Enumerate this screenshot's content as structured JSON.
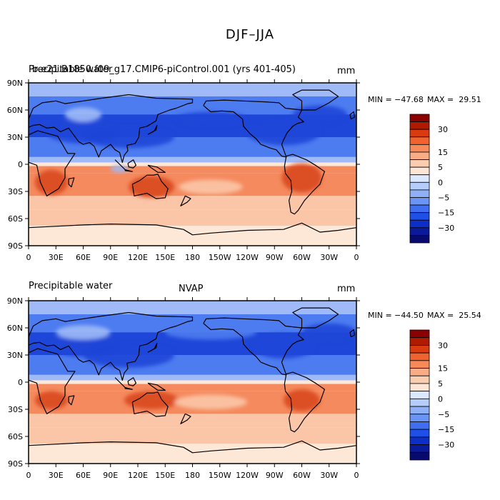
{
  "figure_title": "DJF–JJA",
  "panels": [
    {
      "label_left": "Precipitable water",
      "label_center": "b.e21.B1850.f09_g17.CMIP6-piControl.001 (yrs 401-405)",
      "units": "mm",
      "min_label": "MIN = −47.68",
      "max_label": "MAX =  29.51",
      "min": -47.68,
      "max": 29.51
    },
    {
      "label_left": "Precipitable water",
      "label_center": "NVAP",
      "units": "mm",
      "min_label": "MIN = −44.50",
      "max_label": "MAX =  25.54",
      "min": -44.5,
      "max": 25.54
    }
  ],
  "lat_ticks": [
    "90N",
    "60N",
    "30N",
    "0",
    "30S",
    "60S",
    "90S"
  ],
  "lon_ticks": [
    "0",
    "30E",
    "60E",
    "90E",
    "120E",
    "150E",
    "180",
    "150W",
    "120W",
    "90W",
    "60W",
    "30W",
    "0"
  ],
  "colorbar": {
    "labels": [
      "30",
      "15",
      "5",
      "0",
      "−5",
      "−15",
      "−30"
    ],
    "colors": [
      "#8b0000",
      "#b01a00",
      "#d93b10",
      "#f0622e",
      "#f88a5a",
      "#f9ad87",
      "#fbcdb0",
      "#fde6d6",
      "#dbe8ff",
      "#b5cdfb",
      "#8fb0f7",
      "#6a94f5",
      "#3f6ff0",
      "#1e4fe6",
      "#0d2fc7",
      "#0a1a9a",
      "#080a6e"
    ]
  },
  "colors": {
    "deep_blue": "#1e46d8",
    "mid_blue": "#4d7cf0",
    "light_blue": "#9fbaf7",
    "deep_red": "#d9481e",
    "mid_red": "#f58a5e",
    "light_red": "#fbc6a8",
    "pale": "#fde8d8",
    "coast": "#000000"
  }
}
